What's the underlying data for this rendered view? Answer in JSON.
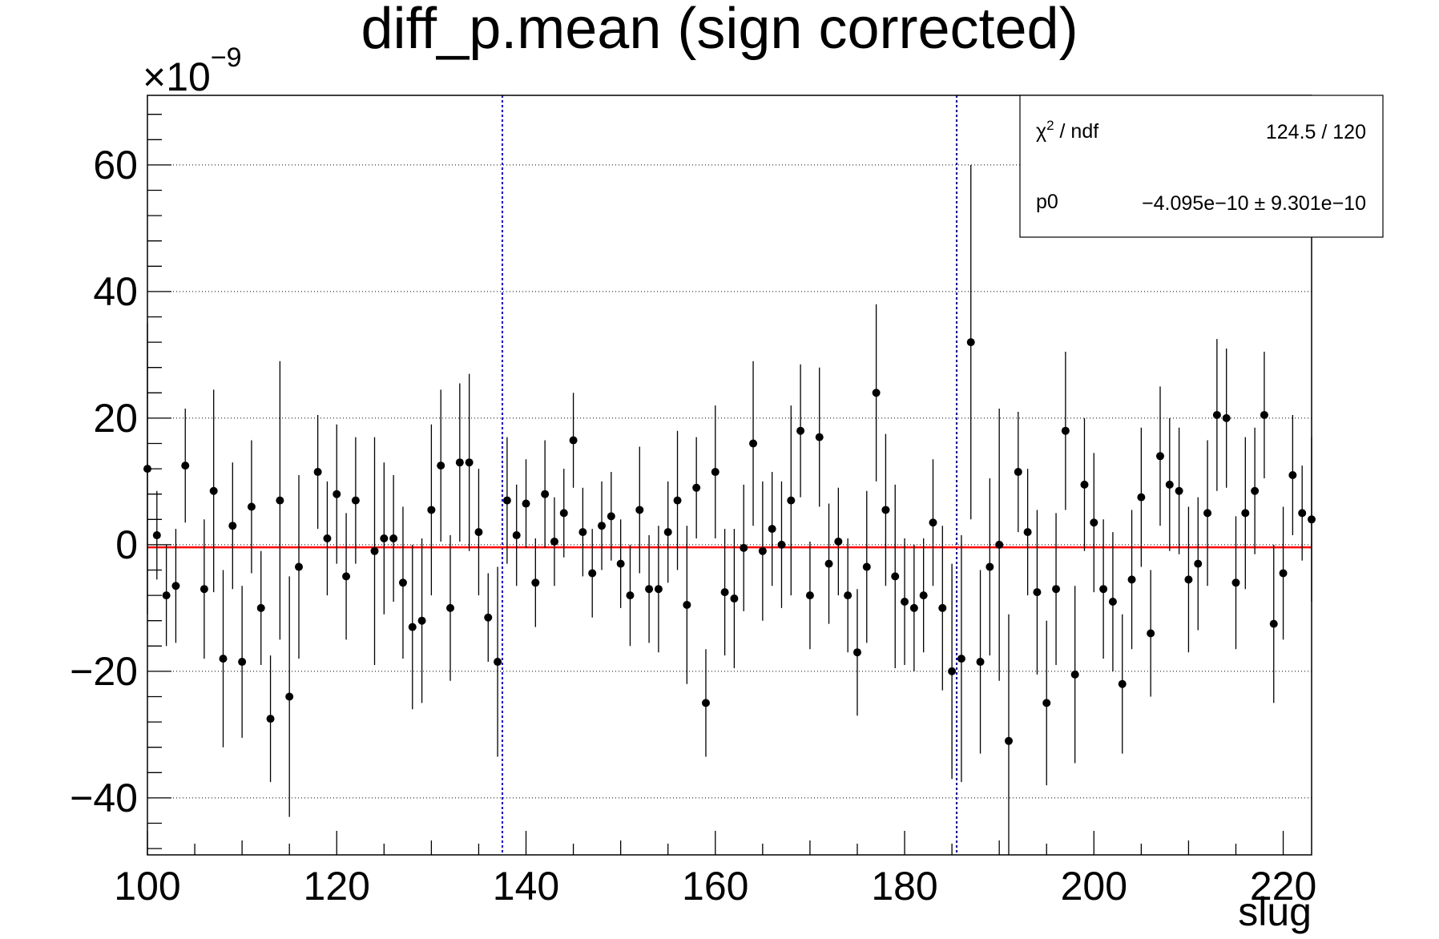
{
  "chart_data": {
    "type": "scatter",
    "title": "diff_p.mean (sign corrected)",
    "xlabel": "slug",
    "ylabel": "",
    "y_exponent_label": "×10",
    "y_exponent": "−9",
    "xlim": [
      100,
      223
    ],
    "ylim": [
      -49,
      71
    ],
    "x_ticks": [
      100,
      120,
      140,
      160,
      180,
      200,
      220
    ],
    "x_tick_labels": [
      "100",
      "120",
      "140",
      "160",
      "180",
      "200",
      "220"
    ],
    "y_ticks": [
      -40,
      -20,
      0,
      20,
      40,
      60
    ],
    "y_tick_labels": [
      "−40",
      "−20",
      "0",
      "20",
      "40",
      "60"
    ],
    "grid": true,
    "vertical_markers": [
      137.5,
      185.5
    ],
    "fit": {
      "label": "p0",
      "value": -0.4095
    },
    "stats_box": {
      "placement": "top-right",
      "rows": [
        {
          "label_main": "χ",
          "label_sup": "2",
          "label_rest": " / ndf",
          "value": "124.5 / 120"
        },
        {
          "label_main": "p0",
          "label_sup": "",
          "label_rest": "",
          "value": "−4.095e−10 ± 9.301e−10"
        }
      ]
    },
    "colors": {
      "points": "#000000",
      "fit_line": "#ff0000",
      "markers": "#0000ff",
      "grid": "#000000"
    },
    "series": [
      {
        "points": [
          {
            "x": 100,
            "y": 12,
            "err": 23
          },
          {
            "x": 101,
            "y": 1.5,
            "err": 7
          },
          {
            "x": 102,
            "y": -8,
            "err": 8
          },
          {
            "x": 103,
            "y": -6.5,
            "err": 9
          },
          {
            "x": 104,
            "y": 12.5,
            "err": 9
          },
          {
            "x": 106,
            "y": -7,
            "err": 11
          },
          {
            "x": 107,
            "y": 8.5,
            "err": 16
          },
          {
            "x": 108,
            "y": -18,
            "err": 14
          },
          {
            "x": 109,
            "y": 3,
            "err": 10
          },
          {
            "x": 110,
            "y": -18.5,
            "err": 12
          },
          {
            "x": 111,
            "y": 6,
            "err": 10.5
          },
          {
            "x": 112,
            "y": -10,
            "err": 9
          },
          {
            "x": 113,
            "y": -27.5,
            "err": 10
          },
          {
            "x": 114,
            "y": 7,
            "err": 22
          },
          {
            "x": 115,
            "y": -24,
            "err": 19
          },
          {
            "x": 116,
            "y": -3.5,
            "err": 14.5
          },
          {
            "x": 118,
            "y": 11.5,
            "err": 9
          },
          {
            "x": 119,
            "y": 1,
            "err": 9
          },
          {
            "x": 120,
            "y": 8,
            "err": 11
          },
          {
            "x": 121,
            "y": -5,
            "err": 10
          },
          {
            "x": 122,
            "y": 7,
            "err": 10
          },
          {
            "x": 124,
            "y": -1,
            "err": 18
          },
          {
            "x": 125,
            "y": 1,
            "err": 12
          },
          {
            "x": 126,
            "y": 1,
            "err": 10
          },
          {
            "x": 127,
            "y": -6,
            "err": 12
          },
          {
            "x": 128,
            "y": -13,
            "err": 13
          },
          {
            "x": 129,
            "y": -12,
            "err": 13
          },
          {
            "x": 130,
            "y": 5.5,
            "err": 13.5
          },
          {
            "x": 131,
            "y": 12.5,
            "err": 12
          },
          {
            "x": 132,
            "y": -10,
            "err": 11.5
          },
          {
            "x": 133,
            "y": 13,
            "err": 12.5
          },
          {
            "x": 134,
            "y": 13,
            "err": 14
          },
          {
            "x": 135,
            "y": 2,
            "err": 10
          },
          {
            "x": 136,
            "y": -11.5,
            "err": 7
          },
          {
            "x": 137,
            "y": -18.5,
            "err": 15
          },
          {
            "x": 138,
            "y": 7,
            "err": 10
          },
          {
            "x": 139,
            "y": 1.5,
            "err": 8
          },
          {
            "x": 140,
            "y": 6.5,
            "err": 7
          },
          {
            "x": 141,
            "y": -6,
            "err": 7
          },
          {
            "x": 142,
            "y": 8,
            "err": 8.5
          },
          {
            "x": 143,
            "y": 0.5,
            "err": 7
          },
          {
            "x": 144,
            "y": 5,
            "err": 7
          },
          {
            "x": 145,
            "y": 16.5,
            "err": 7.5
          },
          {
            "x": 146,
            "y": 2,
            "err": 7
          },
          {
            "x": 147,
            "y": -4.5,
            "err": 7
          },
          {
            "x": 148,
            "y": 3,
            "err": 7
          },
          {
            "x": 149,
            "y": 4.5,
            "err": 7
          },
          {
            "x": 150,
            "y": -3,
            "err": 7
          },
          {
            "x": 151,
            "y": -8,
            "err": 8
          },
          {
            "x": 152,
            "y": 5.5,
            "err": 10
          },
          {
            "x": 153,
            "y": -7,
            "err": 8.5
          },
          {
            "x": 154,
            "y": -7,
            "err": 10
          },
          {
            "x": 155,
            "y": 2,
            "err": 8
          },
          {
            "x": 156,
            "y": 7,
            "err": 11
          },
          {
            "x": 157,
            "y": -9.5,
            "err": 12.5
          },
          {
            "x": 158,
            "y": 9,
            "err": 8
          },
          {
            "x": 159,
            "y": -25,
            "err": 8.5
          },
          {
            "x": 160,
            "y": 11.5,
            "err": 10.5
          },
          {
            "x": 161,
            "y": -7.5,
            "err": 10
          },
          {
            "x": 162,
            "y": -8.5,
            "err": 11
          },
          {
            "x": 163,
            "y": -0.5,
            "err": 10
          },
          {
            "x": 164,
            "y": 16,
            "err": 13
          },
          {
            "x": 165,
            "y": -1,
            "err": 11
          },
          {
            "x": 166,
            "y": 2.5,
            "err": 9
          },
          {
            "x": 167,
            "y": 0,
            "err": 10
          },
          {
            "x": 168,
            "y": 7,
            "err": 15
          },
          {
            "x": 169,
            "y": 18,
            "err": 10.5
          },
          {
            "x": 170,
            "y": -8,
            "err": 8.5
          },
          {
            "x": 171,
            "y": 17,
            "err": 11
          },
          {
            "x": 172,
            "y": -3,
            "err": 9.5
          },
          {
            "x": 173,
            "y": 0.5,
            "err": 8.5
          },
          {
            "x": 174,
            "y": -8,
            "err": 9
          },
          {
            "x": 175,
            "y": -17,
            "err": 10
          },
          {
            "x": 176,
            "y": -3.5,
            "err": 12
          },
          {
            "x": 177,
            "y": 24,
            "err": 14
          },
          {
            "x": 178,
            "y": 5.5,
            "err": 12
          },
          {
            "x": 179,
            "y": -5,
            "err": 14.5
          },
          {
            "x": 180,
            "y": -9,
            "err": 10
          },
          {
            "x": 181,
            "y": -10,
            "err": 10
          },
          {
            "x": 182,
            "y": -8,
            "err": 9
          },
          {
            "x": 183,
            "y": 3.5,
            "err": 10
          },
          {
            "x": 184,
            "y": -10,
            "err": 13
          },
          {
            "x": 185,
            "y": -20,
            "err": 17
          },
          {
            "x": 186,
            "y": -18,
            "err": 19.5
          },
          {
            "x": 187,
            "y": 32,
            "err": 28
          },
          {
            "x": 188,
            "y": -18.5,
            "err": 14.5
          },
          {
            "x": 189,
            "y": -3.5,
            "err": 14
          },
          {
            "x": 190,
            "y": 0,
            "err": 21.5
          },
          {
            "x": 191,
            "y": -31,
            "err": 20
          },
          {
            "x": 192,
            "y": 11.5,
            "err": 9.5
          },
          {
            "x": 193,
            "y": 2,
            "err": 10
          },
          {
            "x": 194,
            "y": -7.5,
            "err": 13
          },
          {
            "x": 195,
            "y": -25,
            "err": 13
          },
          {
            "x": 196,
            "y": -7,
            "err": 12
          },
          {
            "x": 197,
            "y": 18,
            "err": 12.5
          },
          {
            "x": 198,
            "y": -20.5,
            "err": 14
          },
          {
            "x": 199,
            "y": 9.5,
            "err": 10.5
          },
          {
            "x": 200,
            "y": 3.5,
            "err": 11
          },
          {
            "x": 201,
            "y": -7,
            "err": 11
          },
          {
            "x": 202,
            "y": -9,
            "err": 11
          },
          {
            "x": 203,
            "y": -22,
            "err": 11
          },
          {
            "x": 204,
            "y": -5.5,
            "err": 11
          },
          {
            "x": 205,
            "y": 7.5,
            "err": 11
          },
          {
            "x": 206,
            "y": -14,
            "err": 10
          },
          {
            "x": 207,
            "y": 14,
            "err": 11
          },
          {
            "x": 208,
            "y": 9.5,
            "err": 10.5
          },
          {
            "x": 209,
            "y": 8.5,
            "err": 10
          },
          {
            "x": 210,
            "y": -5.5,
            "err": 11.5
          },
          {
            "x": 211,
            "y": -3,
            "err": 10.5
          },
          {
            "x": 212,
            "y": 5,
            "err": 11.5
          },
          {
            "x": 213,
            "y": 20.5,
            "err": 12
          },
          {
            "x": 214,
            "y": 20,
            "err": 11
          },
          {
            "x": 215,
            "y": -6,
            "err": 10.5
          },
          {
            "x": 216,
            "y": 5,
            "err": 12
          },
          {
            "x": 217,
            "y": 8.5,
            "err": 10
          },
          {
            "x": 218,
            "y": 20.5,
            "err": 10
          },
          {
            "x": 219,
            "y": -12.5,
            "err": 12.5
          },
          {
            "x": 220,
            "y": -4.5,
            "err": 10.5
          },
          {
            "x": 221,
            "y": 11,
            "err": 9.5
          },
          {
            "x": 222,
            "y": 5,
            "err": 7.5
          },
          {
            "x": 223,
            "y": 4,
            "err": 13
          }
        ]
      }
    ]
  }
}
